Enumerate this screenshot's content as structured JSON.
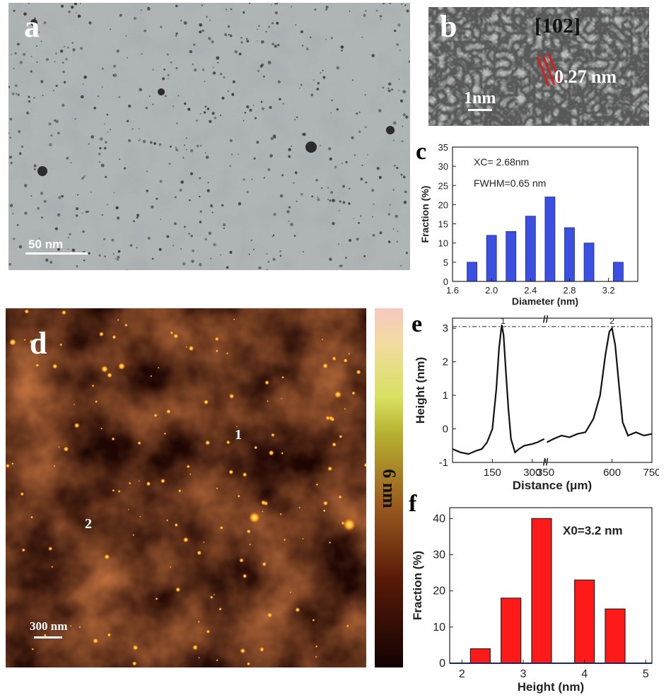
{
  "panels": {
    "a": {
      "letter": "a",
      "scale_label": "50 nm"
    },
    "b": {
      "letter": "b",
      "plane_label": "[102]",
      "spacing_label": "0.27 nm",
      "scale_label": "1nm"
    },
    "c": {
      "letter": "c",
      "annotation_xc": "XC= 2.68nm",
      "annotation_fwhm": "FWHM=0.65 nm"
    },
    "d": {
      "letter": "d",
      "scale_label": "300 nm",
      "colorbar_label": "6 nm",
      "point_1": "1",
      "point_2": "2"
    },
    "e": {
      "letter": "e",
      "peak_1": "1",
      "peak_2": "2"
    },
    "f": {
      "letter": "f",
      "annotation": "X0=3.2 nm"
    }
  },
  "chart_data": [
    {
      "id": "c",
      "type": "bar",
      "xlabel": "Diameter (nm)",
      "ylabel": "Fraction (%)",
      "x": [
        1.8,
        2.0,
        2.2,
        2.4,
        2.6,
        2.8,
        3.0,
        3.3
      ],
      "values": [
        5,
        12,
        13,
        17,
        22,
        14,
        10,
        5
      ],
      "xlim": [
        1.6,
        3.5
      ],
      "ylim": [
        0,
        35
      ],
      "xticks": [
        "1.6",
        "2.0",
        "2.4",
        "2.8",
        "3.2"
      ],
      "yticks": [
        "0",
        "5",
        "10",
        "15",
        "20",
        "25",
        "30",
        "35"
      ],
      "color": "#3b4fe0"
    },
    {
      "id": "e",
      "type": "line",
      "xlabel": "Distance (μm)",
      "ylabel": "Height (nm)",
      "xlim": [
        0,
        750
      ],
      "ylim": [
        -1,
        3.3
      ],
      "xticks": [
        "150",
        "300",
        "350",
        "600",
        "750"
      ],
      "yticks": [
        "-1",
        "0",
        "1",
        "2",
        "3"
      ],
      "reference_line": 3.05,
      "axis_break": "//",
      "series": [
        {
          "values_x": [
            0,
            30,
            60,
            90,
            110,
            130,
            150,
            165,
            175,
            185,
            192,
            200,
            210,
            220,
            235,
            250,
            270,
            300,
            320,
            345
          ],
          "values_y": [
            -0.6,
            -0.7,
            -0.75,
            -0.65,
            -0.6,
            -0.4,
            0.0,
            1.2,
            2.4,
            3.1,
            2.8,
            1.8,
            0.6,
            -0.3,
            -0.7,
            -0.6,
            -0.5,
            -0.45,
            -0.4,
            -0.3
          ]
        },
        {
          "values_x": [
            355,
            380,
            410,
            440,
            470,
            500,
            530,
            555,
            575,
            590,
            600,
            612,
            625,
            640,
            660,
            690,
            720,
            750
          ],
          "values_y": [
            -0.4,
            -0.3,
            -0.2,
            -0.25,
            -0.15,
            -0.1,
            0.3,
            1.0,
            2.2,
            2.9,
            3.0,
            2.5,
            1.4,
            0.2,
            -0.2,
            -0.1,
            -0.2,
            -0.15
          ]
        }
      ],
      "color": "#111111"
    },
    {
      "id": "f",
      "type": "bar",
      "xlabel": "Height (nm)",
      "ylabel": "Fraction (%)",
      "x": [
        2.3,
        2.8,
        3.3,
        4.0,
        4.5
      ],
      "values": [
        4,
        18,
        40,
        23,
        15
      ],
      "xlim": [
        1.8,
        5.1
      ],
      "ylim": [
        0,
        43
      ],
      "xticks": [
        "2",
        "3",
        "4",
        "5"
      ],
      "yticks": [
        "0",
        "10",
        "20",
        "30",
        "40"
      ],
      "color": "#ff1a1a"
    }
  ]
}
